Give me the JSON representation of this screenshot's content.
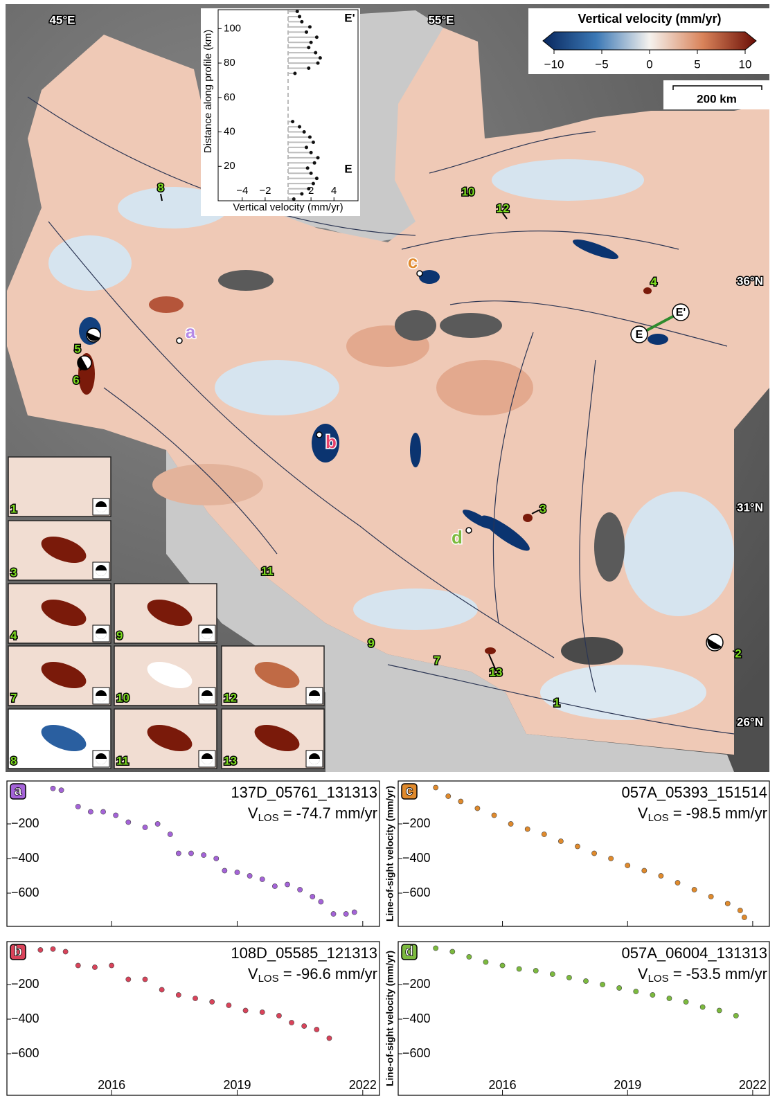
{
  "map": {
    "lon_labels": [
      "45°E",
      "55°E"
    ],
    "lat_labels": [
      "36°N",
      "31°N",
      "26°N"
    ],
    "event_labels": [
      "8",
      "10",
      "12",
      "4",
      "5",
      "6",
      "3",
      "11",
      "9",
      "7",
      "13",
      "2",
      "1"
    ],
    "site_labels": [
      "a",
      "b",
      "c",
      "d"
    ],
    "profile_ends": [
      "E",
      "E'"
    ]
  },
  "colorbar": {
    "title": "Vertical velocity (mm/yr)",
    "lim": [
      -10,
      10
    ],
    "ticks": [
      {
        "value": -10,
        "label": "−10"
      },
      {
        "value": -5,
        "label": "−5"
      },
      0,
      5,
      10
    ]
  },
  "scale_bar": {
    "label": "200 km"
  },
  "thumbnails": [
    "1",
    "3",
    "4",
    "9",
    "7",
    "10",
    "12",
    "8",
    "11",
    "13"
  ],
  "chart_data": [
    {
      "type": "profile",
      "xlabel": "Vertical velocity (mm/yr)",
      "ylabel": "Distance along profile (km)",
      "end_labels": [
        "E",
        "E'"
      ],
      "color": "#111111",
      "zero_line": true,
      "xlim": [
        -6.1,
        6.1
      ],
      "ylim": [
        0,
        111
      ],
      "xticks": [
        {
          "value": -4,
          "label": "−4"
        },
        {
          "value": -2,
          "label": "−2"
        },
        2,
        4
      ],
      "yticks": [
        20,
        40,
        60,
        80,
        100
      ],
      "distance": [
        1,
        4,
        7,
        10,
        13,
        16,
        19,
        22,
        25,
        28,
        31,
        34,
        37,
        40,
        43,
        46,
        74,
        77,
        80,
        83,
        86,
        89,
        92,
        95,
        98,
        101,
        104,
        107,
        110
      ],
      "values": [
        0.5,
        1.2,
        1.8,
        2.2,
        2.5,
        2.0,
        1.7,
        2.3,
        2.6,
        2.0,
        1.6,
        2.2,
        1.9,
        1.4,
        1.0,
        0.4,
        0.6,
        1.8,
        2.6,
        2.8,
        2.4,
        1.8,
        2.0,
        2.5,
        1.6,
        1.9,
        1.2,
        1.0,
        0.8
      ]
    },
    {
      "type": "scatter",
      "panel_label": "a",
      "title": "137D_05761_131313",
      "vlos": {
        "symbol": "V",
        "subscript": "LOS",
        "text": " = -74.7 mm/yr"
      },
      "color": "#a463d8",
      "show_xtick_labels": false,
      "xlim": [
        2013.5,
        2022.4
      ],
      "ylim": [
        -792,
        48
      ],
      "xticks": [
        2016,
        2019,
        2022
      ],
      "yticks": [
        {
          "value": -200,
          "label": "−200"
        },
        {
          "value": -400,
          "label": "−400"
        },
        {
          "value": -600,
          "label": "−600"
        }
      ],
      "x": [
        2014.6,
        2014.8,
        2015.2,
        2015.5,
        2015.8,
        2016.1,
        2016.4,
        2016.8,
        2017.1,
        2017.4,
        2017.6,
        2017.9,
        2018.2,
        2018.5,
        2018.7,
        2019.0,
        2019.3,
        2019.6,
        2019.9,
        2020.2,
        2020.5,
        2020.8,
        2021.0,
        2021.3,
        2021.6,
        2021.8
      ],
      "values": [
        5,
        -5,
        -100,
        -130,
        -130,
        -150,
        -190,
        -220,
        -200,
        -260,
        -370,
        -370,
        -380,
        -400,
        -470,
        -480,
        -500,
        -520,
        -560,
        -550,
        -580,
        -620,
        -650,
        -720,
        -720,
        -710
      ]
    },
    {
      "type": "scatter",
      "panel_label": "c",
      "title": "057A_05393_151514",
      "vlos": {
        "symbol": "V",
        "subscript": "LOS",
        "text": " = -98.5 mm/yr"
      },
      "ylabel": "Line-of-sight velocity (mm/yr)",
      "color": "#e08a2c",
      "show_xtick_labels": false,
      "xlim": [
        2013.5,
        2022.4
      ],
      "ylim": [
        -792,
        48
      ],
      "xticks": [
        2016,
        2019,
        2022
      ],
      "yticks": [
        {
          "value": -200,
          "label": "−200"
        },
        {
          "value": -400,
          "label": "−400"
        },
        {
          "value": -600,
          "label": "−600"
        }
      ],
      "x": [
        2014.4,
        2014.7,
        2015.0,
        2015.4,
        2015.8,
        2016.2,
        2016.6,
        2017.0,
        2017.4,
        2017.8,
        2018.2,
        2018.6,
        2019.0,
        2019.4,
        2019.8,
        2020.2,
        2020.6,
        2021.0,
        2021.4,
        2021.7,
        2021.8
      ],
      "values": [
        10,
        -40,
        -70,
        -110,
        -150,
        -200,
        -230,
        -260,
        -300,
        -330,
        -370,
        -400,
        -440,
        -470,
        -500,
        -540,
        -580,
        -620,
        -660,
        -700,
        -740
      ]
    },
    {
      "type": "scatter",
      "panel_label": "b",
      "title": "108D_05585_121313",
      "vlos": {
        "symbol": "V",
        "subscript": "LOS",
        "text": " = -96.6 mm/yr"
      },
      "color": "#d9435a",
      "show_xtick_labels": true,
      "xlim": [
        2013.5,
        2022.4
      ],
      "ylim": [
        -840,
        48
      ],
      "xticks": [
        2016,
        2019,
        2022
      ],
      "yticks": [
        {
          "value": -200,
          "label": "−200"
        },
        {
          "value": -400,
          "label": "−400"
        },
        {
          "value": -600,
          "label": "−600"
        }
      ],
      "x": [
        2014.3,
        2014.6,
        2014.9,
        2015.2,
        2015.6,
        2016.0,
        2016.4,
        2016.8,
        2017.2,
        2017.6,
        2018.0,
        2018.4,
        2018.8,
        2019.2,
        2019.6,
        2020.0,
        2020.3,
        2020.6,
        2020.9,
        2021.2
      ],
      "values": [
        0,
        5,
        -10,
        -90,
        -100,
        -90,
        -170,
        -170,
        -230,
        -260,
        -280,
        -300,
        -320,
        -350,
        -360,
        -380,
        -420,
        -440,
        -460,
        -510
      ]
    },
    {
      "type": "scatter",
      "panel_label": "d",
      "title": "057A_06004_131313",
      "vlos": {
        "symbol": "V",
        "subscript": "LOS",
        "text": " = -53.5 mm/yr"
      },
      "ylabel": "Line-of-sight velocity (mm/yr)",
      "color": "#7cba3e",
      "show_xtick_labels": true,
      "xlim": [
        2013.5,
        2022.4
      ],
      "ylim": [
        -840,
        48
      ],
      "xticks": [
        2016,
        2019,
        2022
      ],
      "yticks": [
        {
          "value": -200,
          "label": "−200"
        },
        {
          "value": -400,
          "label": "−400"
        },
        {
          "value": -600,
          "label": "−600"
        }
      ],
      "x": [
        2014.4,
        2014.8,
        2015.2,
        2015.6,
        2016.0,
        2016.4,
        2016.8,
        2017.2,
        2017.6,
        2018.0,
        2018.4,
        2018.8,
        2019.2,
        2019.6,
        2020.0,
        2020.4,
        2020.8,
        2021.2,
        2021.6
      ],
      "values": [
        10,
        -10,
        -40,
        -70,
        -90,
        -110,
        -120,
        -140,
        -160,
        -180,
        -200,
        -220,
        -240,
        -260,
        -280,
        -300,
        -330,
        -350,
        -380
      ]
    }
  ]
}
